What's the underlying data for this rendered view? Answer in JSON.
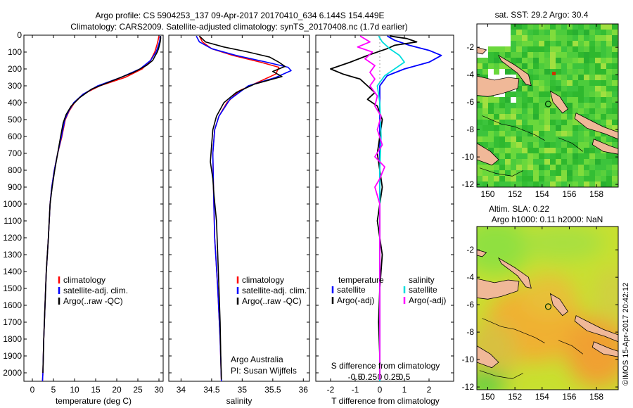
{
  "header": {
    "title_line1": "Argo profile: CS 5904253_137 09-Apr-2017 20170410_634 6.144S 154.449E",
    "title_line2": "Climatology: CARS2009. Satellite-adjusted climatology: synTS_20170408.nc (1.7d earlier)"
  },
  "colors": {
    "climatology": "#ff0000",
    "satellite": "#0000ff",
    "argo": "#000000",
    "salinity_satellite": "#00dddd",
    "salinity_argo": "#ff00ff",
    "land": "#f0b898"
  },
  "chart_data": [
    {
      "type": "line",
      "name": "temperature-profile",
      "xlabel": "temperature (deg C)",
      "ylabel": "",
      "xlim": [
        -2,
        31
      ],
      "ylim": [
        2050,
        0
      ],
      "xticks": [
        0,
        5,
        10,
        15,
        20,
        25,
        30
      ],
      "yticks": [
        0,
        100,
        200,
        300,
        400,
        500,
        600,
        700,
        800,
        900,
        1000,
        1100,
        1200,
        1300,
        1400,
        1500,
        1600,
        1700,
        1800,
        1900,
        2000
      ],
      "legend": [
        "climatology",
        "satellite-adj. clim.",
        "Argo(..raw -QC)"
      ],
      "legend_placement": "lower-middle",
      "series": [
        {
          "name": "climatology",
          "color": "#ff0000",
          "points": [
            [
              30.0,
              5
            ],
            [
              29.8,
              30
            ],
            [
              29.5,
              60
            ],
            [
              29.0,
              100
            ],
            [
              28.0,
              150
            ],
            [
              26.0,
              200
            ],
            [
              22.0,
              250
            ],
            [
              16.0,
              300
            ],
            [
              12.0,
              350
            ],
            [
              10.0,
              400
            ],
            [
              8.7,
              450
            ],
            [
              7.8,
              500
            ],
            [
              7.0,
              600
            ],
            [
              6.0,
              700
            ],
            [
              5.2,
              800
            ],
            [
              4.6,
              900
            ],
            [
              4.2,
              1000
            ],
            [
              3.8,
              1200
            ],
            [
              3.3,
              1400
            ],
            [
              3.0,
              1600
            ],
            [
              2.7,
              1800
            ],
            [
              2.5,
              2000
            ],
            [
              2.4,
              2050
            ]
          ]
        },
        {
          "name": "satellite-adj. clim.",
          "color": "#0000ff",
          "points": [
            [
              30.3,
              5
            ],
            [
              30.2,
              30
            ],
            [
              29.9,
              60
            ],
            [
              29.3,
              100
            ],
            [
              28.0,
              150
            ],
            [
              25.5,
              200
            ],
            [
              21.0,
              250
            ],
            [
              15.5,
              300
            ],
            [
              12.0,
              350
            ],
            [
              9.8,
              400
            ],
            [
              8.6,
              450
            ],
            [
              7.7,
              500
            ],
            [
              6.9,
              600
            ],
            [
              6.0,
              700
            ],
            [
              5.2,
              800
            ],
            [
              4.6,
              900
            ],
            [
              4.2,
              1000
            ],
            [
              3.8,
              1200
            ],
            [
              3.3,
              1400
            ],
            [
              3.0,
              1600
            ],
            [
              2.7,
              1800
            ],
            [
              2.5,
              2000
            ],
            [
              2.4,
              2050
            ]
          ]
        },
        {
          "name": "Argo(..raw -QC)",
          "color": "#000000",
          "points": [
            [
              30.4,
              5
            ],
            [
              30.4,
              20
            ],
            [
              30.3,
              40
            ],
            [
              30.1,
              60
            ],
            [
              29.9,
              80
            ],
            [
              29.6,
              100
            ],
            [
              28.5,
              150
            ],
            [
              27.0,
              180
            ],
            [
              24.0,
              220
            ],
            [
              19.0,
              270
            ],
            [
              14.0,
              320
            ],
            [
              11.2,
              370
            ],
            [
              9.2,
              420
            ],
            [
              8.0,
              470
            ],
            [
              7.3,
              520
            ],
            [
              6.7,
              600
            ],
            [
              6.0,
              700
            ],
            [
              5.3,
              800
            ],
            [
              4.7,
              900
            ],
            [
              4.2,
              1000
            ],
            [
              3.8,
              1200
            ],
            [
              3.3,
              1400
            ],
            [
              3.0,
              1600
            ],
            [
              2.7,
              1800
            ],
            [
              2.5,
              2000
            ]
          ]
        }
      ]
    },
    {
      "type": "line",
      "name": "salinity-profile",
      "xlabel": "salinity",
      "ylabel": "",
      "xlim": [
        33.8,
        36.1
      ],
      "ylim": [
        2050,
        0
      ],
      "xticks": [
        34,
        34.5,
        35,
        35.5,
        36
      ],
      "legend": [
        "climatology",
        "satellite-adj. clim.",
        "Argo(..raw -QC)"
      ],
      "legend_placement": "lower-right",
      "annotations": [
        "Argo Australia",
        "PI: Susan Wijffels"
      ],
      "series": [
        {
          "name": "climatology",
          "color": "#ff0000",
          "points": [
            [
              34.3,
              5
            ],
            [
              34.35,
              40
            ],
            [
              34.5,
              80
            ],
            [
              34.85,
              120
            ],
            [
              35.3,
              160
            ],
            [
              35.6,
              190
            ],
            [
              35.55,
              230
            ],
            [
              35.25,
              280
            ],
            [
              34.95,
              330
            ],
            [
              34.75,
              400
            ],
            [
              34.62,
              480
            ],
            [
              34.55,
              560
            ],
            [
              34.52,
              700
            ],
            [
              34.53,
              900
            ],
            [
              34.55,
              1200
            ],
            [
              34.6,
              1500
            ],
            [
              34.64,
              1800
            ],
            [
              34.66,
              2050
            ]
          ]
        },
        {
          "name": "satellite-adj. clim.",
          "color": "#0000ff",
          "points": [
            [
              34.25,
              5
            ],
            [
              34.3,
              40
            ],
            [
              34.5,
              80
            ],
            [
              34.9,
              120
            ],
            [
              35.4,
              160
            ],
            [
              35.75,
              190
            ],
            [
              35.8,
              210
            ],
            [
              35.55,
              250
            ],
            [
              35.1,
              300
            ],
            [
              34.8,
              380
            ],
            [
              34.62,
              480
            ],
            [
              34.55,
              560
            ],
            [
              34.52,
              700
            ],
            [
              34.53,
              900
            ],
            [
              34.55,
              1200
            ],
            [
              34.6,
              1500
            ],
            [
              34.64,
              1800
            ],
            [
              34.66,
              2050
            ]
          ]
        },
        {
          "name": "Argo(..raw -QC)",
          "color": "#000000",
          "points": [
            [
              34.3,
              5
            ],
            [
              34.4,
              40
            ],
            [
              34.7,
              70
            ],
            [
              35.1,
              100
            ],
            [
              35.45,
              130
            ],
            [
              35.6,
              160
            ],
            [
              35.7,
              185
            ],
            [
              35.5,
              215
            ],
            [
              35.65,
              245
            ],
            [
              35.2,
              290
            ],
            [
              34.9,
              340
            ],
            [
              34.7,
              400
            ],
            [
              34.58,
              480
            ],
            [
              34.52,
              560
            ],
            [
              34.5,
              650
            ],
            [
              34.48,
              750
            ],
            [
              34.52,
              850
            ],
            [
              34.54,
              950
            ],
            [
              34.58,
              1100
            ],
            [
              34.6,
              1300
            ],
            [
              34.62,
              1500
            ],
            [
              34.64,
              1700
            ],
            [
              34.65,
              1900
            ],
            [
              34.66,
              2040
            ]
          ]
        }
      ]
    },
    {
      "type": "line",
      "name": "difference-from-climatology",
      "xlabel": "T difference from climatology",
      "xlabel_top": "S difference from climatology",
      "xlim": [
        -2.6,
        3.0
      ],
      "ylim": [
        2050,
        0
      ],
      "xticks_T": [
        -2,
        -1,
        0,
        1,
        2
      ],
      "xticks_S": [
        "-0.5",
        "-0.25",
        "0",
        "0.25",
        "0.5"
      ],
      "xticks_S_values": [
        -0.5,
        -0.25,
        0,
        0.25,
        0.5
      ],
      "legend_left_title": "temperature",
      "legend_right_title": "salinity",
      "legend_left": [
        "satellite",
        "Argo(-adj)"
      ],
      "legend_right": [
        "satellite",
        "Argo(-adj)"
      ],
      "series": [
        {
          "name": "temperature satellite",
          "color": "#0000ff",
          "points": [
            [
              0.3,
              5
            ],
            [
              0.6,
              30
            ],
            [
              1.2,
              60
            ],
            [
              2.0,
              90
            ],
            [
              2.5,
              120
            ],
            [
              2.0,
              160
            ],
            [
              1.0,
              200
            ],
            [
              0.3,
              240
            ],
            [
              0.0,
              300
            ],
            [
              0.0,
              600
            ],
            [
              0.0,
              2050
            ]
          ]
        },
        {
          "name": "temperature Argo(-adj)",
          "color": "#000000",
          "points": [
            [
              0.4,
              5
            ],
            [
              1.1,
              20
            ],
            [
              1.5,
              40
            ],
            [
              0.6,
              60
            ],
            [
              0.3,
              80
            ],
            [
              -0.5,
              120
            ],
            [
              -1.2,
              160
            ],
            [
              -2.0,
              200
            ],
            [
              -1.5,
              230
            ],
            [
              -0.8,
              260
            ],
            [
              -0.5,
              300
            ],
            [
              -0.2,
              340
            ],
            [
              -0.5,
              380
            ],
            [
              -0.1,
              420
            ],
            [
              0.1,
              500
            ],
            [
              -0.1,
              700
            ],
            [
              0.1,
              900
            ],
            [
              -0.1,
              1100
            ],
            [
              0.1,
              1300
            ],
            [
              0.0,
              1500
            ],
            [
              -0.05,
              1700
            ],
            [
              0.0,
              1900
            ],
            [
              0.0,
              2040
            ]
          ]
        },
        {
          "name": "salinity satellite",
          "color": "#00dddd",
          "points": [
            [
              -0.05,
              5
            ],
            [
              0.1,
              40
            ],
            [
              0.4,
              80
            ],
            [
              0.8,
              120
            ],
            [
              1.0,
              160
            ],
            [
              0.6,
              200
            ],
            [
              0.2,
              240
            ],
            [
              -0.1,
              300
            ],
            [
              0.0,
              400
            ],
            [
              0.05,
              600
            ],
            [
              0.0,
              800
            ],
            [
              0.0,
              1200
            ],
            [
              0.0,
              2050
            ]
          ]
        },
        {
          "name": "salinity Argo(-adj)",
          "color": "#ff00ff",
          "points": [
            [
              -0.8,
              5
            ],
            [
              -0.4,
              40
            ],
            [
              -0.9,
              70
            ],
            [
              -0.3,
              100
            ],
            [
              -0.6,
              140
            ],
            [
              -0.2,
              180
            ],
            [
              -0.4,
              220
            ],
            [
              -0.2,
              260
            ],
            [
              -0.4,
              300
            ],
            [
              -0.1,
              360
            ],
            [
              -0.2,
              420
            ],
            [
              0.05,
              480
            ],
            [
              -0.1,
              560
            ],
            [
              0.1,
              650
            ],
            [
              -0.2,
              720
            ],
            [
              0.2,
              780
            ],
            [
              0.0,
              850
            ],
            [
              -0.2,
              900
            ],
            [
              0.0,
              1000
            ],
            [
              0.0,
              2040
            ]
          ]
        }
      ]
    },
    {
      "type": "heatmap",
      "name": "sst-map",
      "title": "sat. SST: 29.2  Argo: 30.4",
      "xlim": [
        149.2,
        159.6
      ],
      "ylim": [
        -12.2,
        -0.3
      ],
      "xticks": [
        150,
        152,
        154,
        156,
        158
      ],
      "yticks": [
        -2,
        -4,
        -6,
        -8,
        -10,
        -12
      ],
      "argo_location": [
        154.45,
        -6.14
      ]
    },
    {
      "type": "heatmap",
      "name": "sla-map",
      "title_line1": "Altim. SLA: 0.22",
      "title_line2": "Argo h1000: 0.11 h2000: NaN",
      "xlim": [
        149.2,
        159.6
      ],
      "ylim": [
        -12.2,
        -0.3
      ],
      "xticks": [
        150,
        152,
        154,
        156,
        158
      ],
      "yticks": [
        -2,
        -4,
        -6,
        -8,
        -10,
        -12
      ],
      "argo_location": [
        154.45,
        -6.14
      ]
    }
  ],
  "stamp": "©IMOS 15-Apr-2017 20:42:12"
}
